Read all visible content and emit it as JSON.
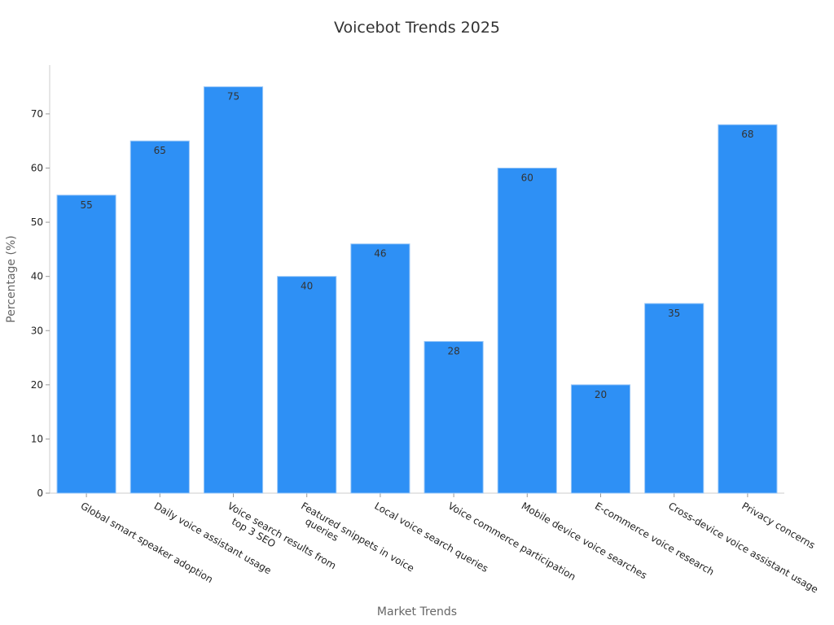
{
  "chart_data": {
    "type": "bar",
    "title": "Voicebot Trends 2025",
    "xlabel": "Market Trends",
    "ylabel": "Percentage (%)",
    "ylim": [
      0,
      79
    ],
    "yticks": [
      0,
      10,
      20,
      30,
      40,
      50,
      60,
      70
    ],
    "grid": false,
    "categories": [
      "Global smart speaker adoption",
      "Daily voice assistant usage",
      "Voice search results from top 3 SEO",
      "Featured snippets in voice queries",
      "Local voice search queries",
      "Voice commerce participation",
      "Mobile device voice searches",
      "E-commerce voice research",
      "Cross-device voice assistant usage",
      "Privacy concerns"
    ],
    "values": [
      55,
      65,
      75,
      40,
      46,
      28,
      60,
      20,
      35,
      68
    ],
    "bar_color": "#2E90F5",
    "bar_edge_color": "#9CC8F7"
  }
}
